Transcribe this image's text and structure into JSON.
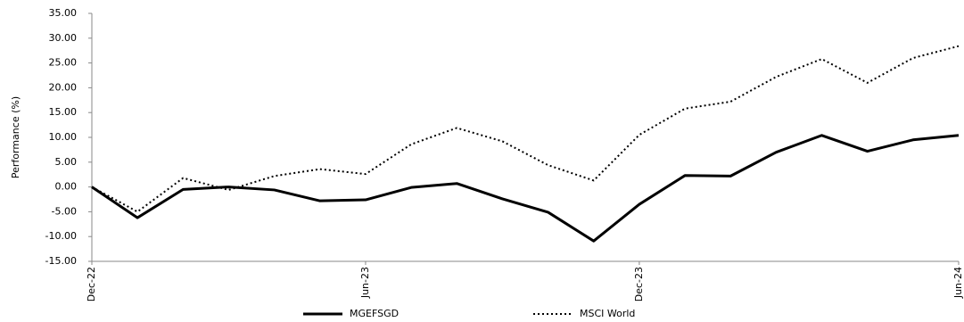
{
  "chart_data": {
    "type": "line",
    "y_label": "Performance (%)",
    "categories": [
      "Dec-22",
      null,
      null,
      null,
      null,
      null,
      "Jun-23",
      null,
      null,
      null,
      null,
      null,
      "Dec-23",
      null,
      null,
      null,
      null,
      null,
      null,
      "Jun-24"
    ],
    "series": [
      {
        "name": "MGEFSGD",
        "color": "#000000",
        "style": "solid",
        "values": [
          0,
          -6.2,
          -0.5,
          0,
          -0.6,
          -2.8,
          -2.6,
          -0.1,
          0.7,
          -2.4,
          -5.1,
          -10.9,
          -3.5,
          2.3,
          2.2,
          7.0,
          10.4,
          7.2,
          9.5,
          10.4
        ]
      },
      {
        "name": "MSCI World",
        "color": "#000000",
        "style": "dotted",
        "values": [
          0,
          -5.0,
          1.8,
          -0.6,
          2.2,
          3.6,
          2.6,
          8.6,
          11.9,
          9.2,
          4.4,
          1.3,
          10.5,
          15.8,
          17.2,
          22.2,
          25.8,
          21.0,
          26.0,
          28.4
        ]
      }
    ],
    "ylim": [
      -15,
      35
    ],
    "yticks": [
      {
        "value": -15,
        "label": "-15.00"
      },
      {
        "value": -10,
        "label": "-10.00"
      },
      {
        "value": -5,
        "label": "-5.00"
      },
      {
        "value": 0,
        "label": "0.00"
      },
      {
        "value": 5,
        "label": "5.00"
      },
      {
        "value": 10,
        "label": "10.00"
      },
      {
        "value": 15,
        "label": "15.00"
      },
      {
        "value": 20,
        "label": "20.00"
      },
      {
        "value": 25,
        "label": "25.00"
      },
      {
        "value": 30,
        "label": "30.00"
      },
      {
        "value": 35,
        "label": "35.00"
      }
    ],
    "grid": false,
    "legend": "bottom"
  }
}
